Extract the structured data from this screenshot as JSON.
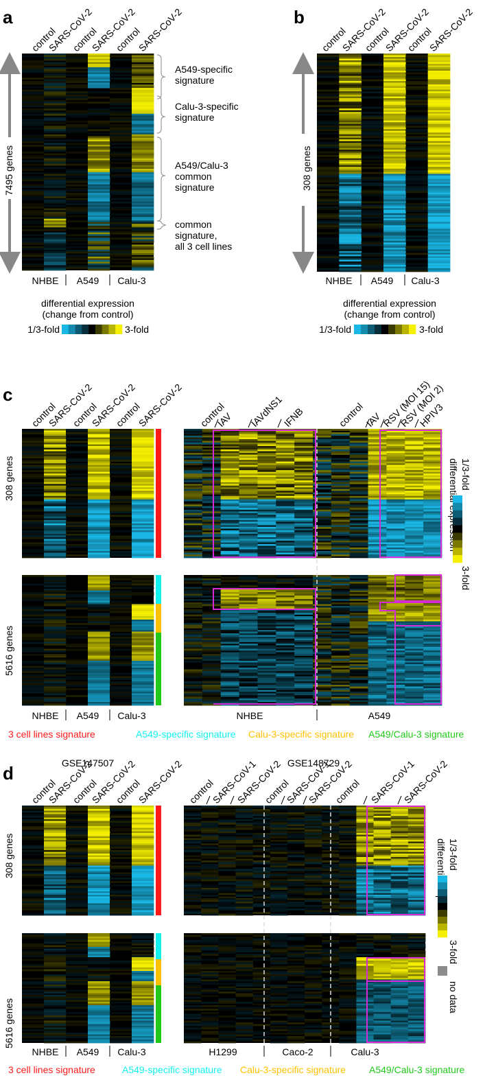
{
  "panels": {
    "a": "a",
    "b": "b",
    "c": "c",
    "d": "d"
  },
  "colors": {
    "yellow": "#f5f000",
    "cyan": "#1ab8e6",
    "black": "#000000",
    "magenta": "#d62ad6",
    "sig_red": "#ff1a1a",
    "sig_cyan": "#14f0f0",
    "sig_gold": "#ffc000",
    "sig_green": "#22c91a",
    "nodata": "#8c8c8c"
  },
  "common": {
    "colheaders_3lines": [
      "control",
      "SARS-CoV-2",
      "control",
      "SARS-CoV-2",
      "control",
      "SARS-CoV-2"
    ],
    "cell_lines": [
      "NHBE",
      "A549",
      "Calu-3"
    ],
    "legend_title_1": "differential expression",
    "legend_title_2": "(change from control)",
    "legend_low": "1/3-fold",
    "legend_high": "3-fold",
    "legend_vertical": "differential expression",
    "genes_308": "308 genes",
    "genes_5616": "5616 genes",
    "signatures": [
      "3 cell lines signature",
      "A549-specific signature",
      "Calu-3-specific signature",
      "A549/Calu-3 signature"
    ]
  },
  "panel_a": {
    "genes": "7495 genes",
    "annotations": [
      [
        "A549-specific",
        "signature"
      ],
      [
        "Calu-3-specific",
        "signature"
      ],
      [
        "A549/Calu-3",
        "common",
        "signature"
      ],
      [
        "common",
        "signature,",
        "all 3 cell lines"
      ]
    ]
  },
  "panel_c": {
    "nhbe_headers": [
      "control",
      "IAV",
      "IAVdNS1",
      "IFNB"
    ],
    "a549_headers": [
      "control",
      "IAV",
      "RSV (MOI 15)",
      "RSV (MOI 2)",
      "HPIV3"
    ],
    "right_lines": [
      "NHBE",
      "A549"
    ]
  },
  "panel_d": {
    "dataset_left": "GSE147507",
    "dataset_right": "GSE148729",
    "right_headers": [
      "control",
      "SARS-CoV-1",
      "SARS-CoV-2",
      "control",
      "SARS-CoV-1",
      "SARS-CoV-2",
      "control",
      "SARS-CoV-1",
      "SARS-CoV-2"
    ],
    "right_lines": [
      "H1299",
      "Caco-2",
      "Calu-3"
    ],
    "no_data": "no data"
  }
}
